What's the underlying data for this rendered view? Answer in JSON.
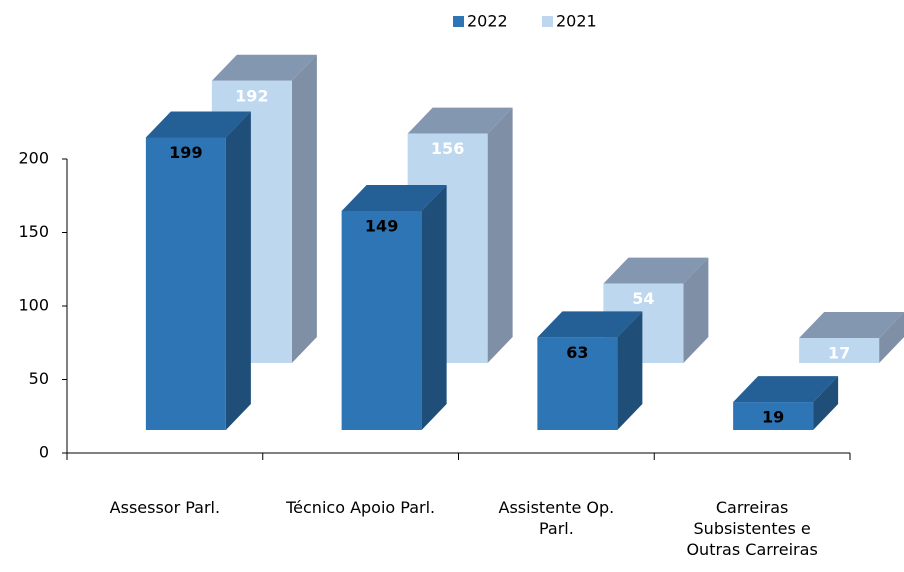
{
  "chart_data": {
    "type": "bar3d",
    "categories": [
      "Assessor Parl.",
      "Técnico Apoio Parl.",
      "Assistente Op. Parl.",
      "Carreiras Subsistentes e Outras Carreiras"
    ],
    "series": [
      {
        "name": "2022",
        "color": "#2e75b6",
        "values": [
          199,
          149,
          63,
          19
        ]
      },
      {
        "name": "2021",
        "color": "#bdd7ee",
        "values": [
          192,
          156,
          54,
          17
        ]
      }
    ],
    "ylim": [
      0,
      200
    ],
    "yticks": [
      0,
      50,
      100,
      150,
      200
    ],
    "legend": "top"
  }
}
